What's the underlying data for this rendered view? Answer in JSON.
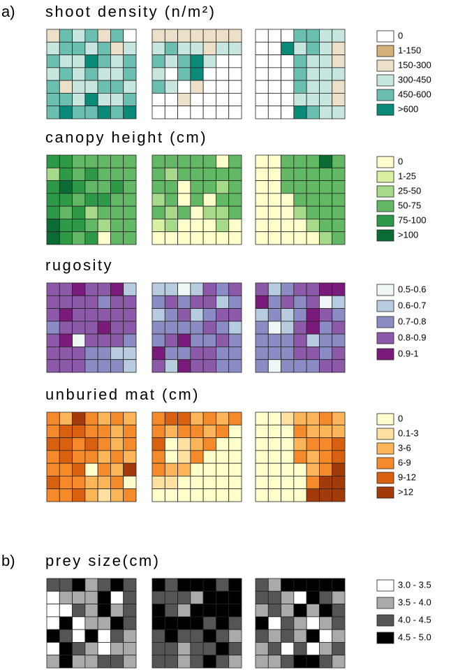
{
  "chart_data": [
    {
      "type": "heatmap",
      "panel": "a)",
      "title": "shoot density (n/m²)",
      "legend": [
        {
          "label": "0",
          "color": "#ffffff"
        },
        {
          "label": "1-150",
          "color": "#d4b07a"
        },
        {
          "label": "150-300",
          "color": "#ede0c8"
        },
        {
          "label": "300-450",
          "color": "#c8e6e0"
        },
        {
          "label": "450-600",
          "color": "#6bbfb0"
        },
        {
          "label": ">600",
          "color": "#0a8a78"
        }
      ],
      "grids": [
        [
          [
            2,
            4,
            3,
            4,
            2,
            4,
            0
          ],
          [
            3,
            4,
            4,
            3,
            4,
            2,
            3
          ],
          [
            4,
            3,
            3,
            5,
            4,
            3,
            4
          ],
          [
            3,
            4,
            3,
            4,
            3,
            3,
            4
          ],
          [
            4,
            2,
            3,
            3,
            4,
            4,
            3
          ],
          [
            4,
            4,
            3,
            5,
            3,
            3,
            4
          ],
          [
            4,
            5,
            4,
            4,
            5,
            4,
            5
          ]
        ],
        [
          [
            2,
            2,
            2,
            2,
            2,
            2,
            2
          ],
          [
            3,
            4,
            3,
            3,
            2,
            3,
            3
          ],
          [
            4,
            3,
            4,
            5,
            3,
            0,
            0
          ],
          [
            3,
            0,
            4,
            5,
            0,
            0,
            0
          ],
          [
            4,
            3,
            0,
            2,
            0,
            0,
            0
          ],
          [
            0,
            0,
            2,
            0,
            0,
            0,
            0
          ],
          [
            0,
            0,
            0,
            0,
            0,
            0,
            0
          ]
        ],
        [
          [
            0,
            0,
            0,
            4,
            4,
            3,
            3
          ],
          [
            0,
            0,
            5,
            3,
            4,
            3,
            2
          ],
          [
            0,
            0,
            0,
            4,
            3,
            3,
            2
          ],
          [
            0,
            0,
            0,
            4,
            3,
            3,
            3
          ],
          [
            0,
            0,
            0,
            4,
            3,
            3,
            2
          ],
          [
            0,
            0,
            0,
            3,
            3,
            3,
            2
          ],
          [
            0,
            0,
            0,
            5,
            4,
            3,
            3
          ]
        ]
      ]
    },
    {
      "type": "heatmap",
      "title": "canopy height (cm)",
      "legend": [
        {
          "label": "0",
          "color": "#ffffcc"
        },
        {
          "label": "1-25",
          "color": "#d9f0a3"
        },
        {
          "label": "25-50",
          "color": "#a6d98a"
        },
        {
          "label": "50-75",
          "color": "#62b865"
        },
        {
          "label": "75-100",
          "color": "#2e9a48"
        },
        {
          "label": ">100",
          "color": "#0b6b35"
        }
      ],
      "grids": [
        [
          [
            4,
            4,
            3,
            3,
            3,
            3,
            3
          ],
          [
            2,
            4,
            3,
            4,
            3,
            3,
            3
          ],
          [
            4,
            5,
            4,
            3,
            3,
            4,
            3
          ],
          [
            4,
            4,
            3,
            4,
            4,
            3,
            3
          ],
          [
            4,
            3,
            4,
            2,
            3,
            3,
            3
          ],
          [
            5,
            4,
            4,
            3,
            2,
            3,
            3
          ],
          [
            5,
            4,
            3,
            4,
            0,
            3,
            3
          ]
        ],
        [
          [
            3,
            3,
            3,
            3,
            3,
            0,
            3
          ],
          [
            3,
            2,
            3,
            3,
            3,
            3,
            3
          ],
          [
            3,
            3,
            0,
            3,
            3,
            2,
            3
          ],
          [
            2,
            3,
            0,
            3,
            0,
            3,
            3
          ],
          [
            3,
            2,
            3,
            0,
            2,
            2,
            3
          ],
          [
            1,
            2,
            0,
            0,
            0,
            2,
            0
          ],
          [
            0,
            0,
            0,
            0,
            0,
            0,
            0
          ]
        ],
        [
          [
            0,
            0,
            3,
            3,
            3,
            5,
            3
          ],
          [
            0,
            0,
            3,
            3,
            3,
            3,
            3
          ],
          [
            0,
            0,
            3,
            3,
            3,
            3,
            3
          ],
          [
            0,
            0,
            0,
            3,
            3,
            3,
            3
          ],
          [
            0,
            0,
            0,
            2,
            3,
            3,
            3
          ],
          [
            0,
            0,
            0,
            0,
            2,
            3,
            3
          ],
          [
            0,
            0,
            0,
            0,
            0,
            2,
            3
          ]
        ]
      ]
    },
    {
      "type": "heatmap",
      "title": "rugosity",
      "legend": [
        {
          "label": "0.5-0.6",
          "color": "#eef6f6"
        },
        {
          "label": "0.6-0.7",
          "color": "#b8cce0"
        },
        {
          "label": "0.7-0.8",
          "color": "#8c8cc4"
        },
        {
          "label": "0.8-0.9",
          "color": "#8c5aa8"
        },
        {
          "label": "0.9-1",
          "color": "#7a1a7a"
        }
      ],
      "grids": [
        [
          [
            3,
            3,
            4,
            3,
            3,
            4,
            1
          ],
          [
            3,
            3,
            3,
            3,
            2,
            3,
            3
          ],
          [
            3,
            4,
            3,
            3,
            3,
            3,
            3
          ],
          [
            2,
            3,
            3,
            3,
            4,
            3,
            3
          ],
          [
            3,
            4,
            0,
            3,
            3,
            3,
            2
          ],
          [
            3,
            3,
            3,
            2,
            2,
            1,
            1
          ],
          [
            3,
            3,
            3,
            2,
            2,
            2,
            1
          ]
        ],
        [
          [
            1,
            1,
            0,
            1,
            3,
            2,
            3
          ],
          [
            2,
            3,
            2,
            3,
            3,
            1,
            2
          ],
          [
            1,
            2,
            3,
            1,
            2,
            3,
            3
          ],
          [
            2,
            2,
            2,
            2,
            3,
            2,
            1
          ],
          [
            2,
            3,
            4,
            2,
            2,
            3,
            2
          ],
          [
            4,
            2,
            2,
            3,
            3,
            2,
            2
          ],
          [
            3,
            1,
            4,
            3,
            3,
            2,
            2
          ]
        ],
        [
          [
            3,
            1,
            2,
            3,
            3,
            4,
            4
          ],
          [
            4,
            2,
            3,
            2,
            3,
            0,
            1
          ],
          [
            1,
            2,
            1,
            2,
            4,
            3,
            2
          ],
          [
            2,
            0,
            1,
            3,
            4,
            2,
            3
          ],
          [
            2,
            2,
            2,
            3,
            1,
            2,
            2
          ],
          [
            2,
            2,
            2,
            3,
            3,
            2,
            3
          ],
          [
            2,
            0,
            2,
            2,
            2,
            3,
            3
          ]
        ]
      ]
    },
    {
      "type": "heatmap",
      "title": "unburied mat (cm)",
      "legend": [
        {
          "label": "0",
          "color": "#ffffcc"
        },
        {
          "label": "0.1-3",
          "color": "#fee0a0"
        },
        {
          "label": "3-6",
          "color": "#fdb55a"
        },
        {
          "label": "6-9",
          "color": "#f58a2a"
        },
        {
          "label": "9-12",
          "color": "#d9600f"
        },
        {
          "label": ">12",
          "color": "#a33a0a"
        }
      ],
      "grids": [
        [
          [
            3,
            2,
            5,
            3,
            2,
            3,
            2
          ],
          [
            3,
            4,
            4,
            3,
            3,
            2,
            3
          ],
          [
            4,
            4,
            3,
            4,
            3,
            2,
            3
          ],
          [
            3,
            4,
            3,
            3,
            2,
            3,
            2
          ],
          [
            3,
            3,
            4,
            0,
            3,
            2,
            5
          ],
          [
            4,
            3,
            3,
            2,
            2,
            3,
            0
          ],
          [
            3,
            3,
            4,
            2,
            1,
            2,
            3
          ]
        ],
        [
          [
            3,
            4,
            4,
            2,
            3,
            2,
            3
          ],
          [
            3,
            2,
            3,
            3,
            2,
            3,
            0
          ],
          [
            4,
            0,
            1,
            2,
            3,
            0,
            0
          ],
          [
            3,
            0,
            1,
            3,
            0,
            0,
            0
          ],
          [
            3,
            2,
            2,
            0,
            0,
            0,
            0
          ],
          [
            1,
            1,
            0,
            0,
            0,
            0,
            0
          ],
          [
            0,
            0,
            0,
            0,
            0,
            0,
            0
          ]
        ],
        [
          [
            0,
            0,
            1,
            2,
            2,
            3,
            2
          ],
          [
            0,
            0,
            0,
            3,
            2,
            2,
            2
          ],
          [
            0,
            0,
            0,
            2,
            3,
            3,
            4
          ],
          [
            0,
            0,
            0,
            3,
            2,
            3,
            4
          ],
          [
            0,
            0,
            0,
            0,
            2,
            3,
            5
          ],
          [
            0,
            0,
            0,
            0,
            3,
            5,
            5
          ],
          [
            0,
            0,
            0,
            0,
            5,
            5,
            5
          ]
        ]
      ]
    },
    {
      "type": "heatmap",
      "panel": "b)",
      "title": "prey size(cm)",
      "legend": [
        {
          "label": "3.0 - 3.5",
          "color": "#ffffff"
        },
        {
          "label": "3.5 - 4.0",
          "color": "#aaaaaa"
        },
        {
          "label": "4.0 - 4.5",
          "color": "#555555"
        },
        {
          "label": "4.5 - 5.0",
          "color": "#000000"
        }
      ],
      "grids": [
        [
          [
            2,
            2,
            3,
            1,
            2,
            3,
            2
          ],
          [
            0,
            1,
            1,
            1,
            3,
            0,
            2
          ],
          [
            0,
            0,
            2,
            1,
            3,
            1,
            2
          ],
          [
            0,
            3,
            0,
            1,
            1,
            3,
            2
          ],
          [
            3,
            2,
            0,
            3,
            0,
            2,
            1
          ],
          [
            0,
            3,
            2,
            1,
            0,
            1,
            1
          ],
          [
            1,
            3,
            1,
            1,
            2,
            2,
            1
          ]
        ],
        [
          [
            3,
            2,
            3,
            3,
            3,
            2,
            3
          ],
          [
            2,
            2,
            2,
            1,
            3,
            3,
            3
          ],
          [
            3,
            2,
            1,
            3,
            3,
            3,
            3
          ],
          [
            3,
            3,
            3,
            3,
            2,
            3,
            2
          ],
          [
            2,
            3,
            2,
            2,
            3,
            2,
            1
          ],
          [
            2,
            2,
            1,
            2,
            2,
            3,
            2
          ],
          [
            2,
            2,
            1,
            2,
            3,
            2,
            1
          ]
        ],
        [
          [
            2,
            1,
            3,
            3,
            3,
            3,
            3
          ],
          [
            2,
            2,
            1,
            0,
            3,
            2,
            1
          ],
          [
            1,
            2,
            1,
            3,
            1,
            3,
            2
          ],
          [
            3,
            0,
            2,
            1,
            0,
            1,
            2
          ],
          [
            2,
            1,
            2,
            1,
            3,
            0,
            1
          ],
          [
            1,
            2,
            0,
            2,
            0,
            1,
            2
          ],
          [
            1,
            1,
            2,
            3,
            3,
            2,
            1
          ]
        ]
      ]
    }
  ]
}
